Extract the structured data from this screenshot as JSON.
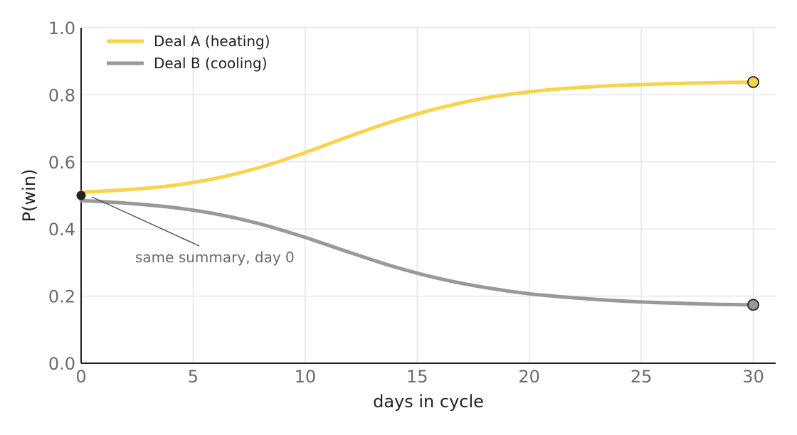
{
  "chart_data": {
    "type": "line",
    "title": "",
    "xlabel": "days in cycle",
    "ylabel": "P(win)",
    "xlim": [
      0,
      31
    ],
    "ylim": [
      0,
      1.0
    ],
    "xticks": [
      0,
      5,
      10,
      15,
      20,
      25,
      30
    ],
    "yticks": [
      0.0,
      0.2,
      0.4,
      0.6,
      0.8,
      1.0
    ],
    "xtick_labels": [
      "0",
      "5",
      "10",
      "15",
      "20",
      "25",
      "30"
    ],
    "ytick_labels": [
      "0.0",
      "0.2",
      "0.4",
      "0.6",
      "0.8",
      "1.0"
    ],
    "grid": true,
    "legend_position": "top-left",
    "series": [
      {
        "name": "Deal A  (heating)",
        "color": "#F7D44C",
        "x": [
          0,
          2,
          4,
          6,
          8,
          10,
          12,
          14,
          16,
          18,
          20,
          22,
          24,
          26,
          28,
          30
        ],
        "y": [
          0.51,
          0.517,
          0.529,
          0.551,
          0.584,
          0.628,
          0.677,
          0.723,
          0.761,
          0.79,
          0.809,
          0.821,
          0.828,
          0.833,
          0.836,
          0.838
        ]
      },
      {
        "name": "Deal B  (cooling)",
        "color": "#999999",
        "x": [
          0,
          2,
          4,
          6,
          8,
          10,
          12,
          14,
          16,
          18,
          20,
          22,
          24,
          26,
          28,
          30
        ],
        "y": [
          0.485,
          0.477,
          0.465,
          0.445,
          0.415,
          0.375,
          0.33,
          0.287,
          0.252,
          0.226,
          0.207,
          0.195,
          0.186,
          0.18,
          0.176,
          0.174
        ]
      }
    ],
    "annotation": {
      "text": "same summary, day 0",
      "x": 0,
      "y": 0.5
    }
  }
}
